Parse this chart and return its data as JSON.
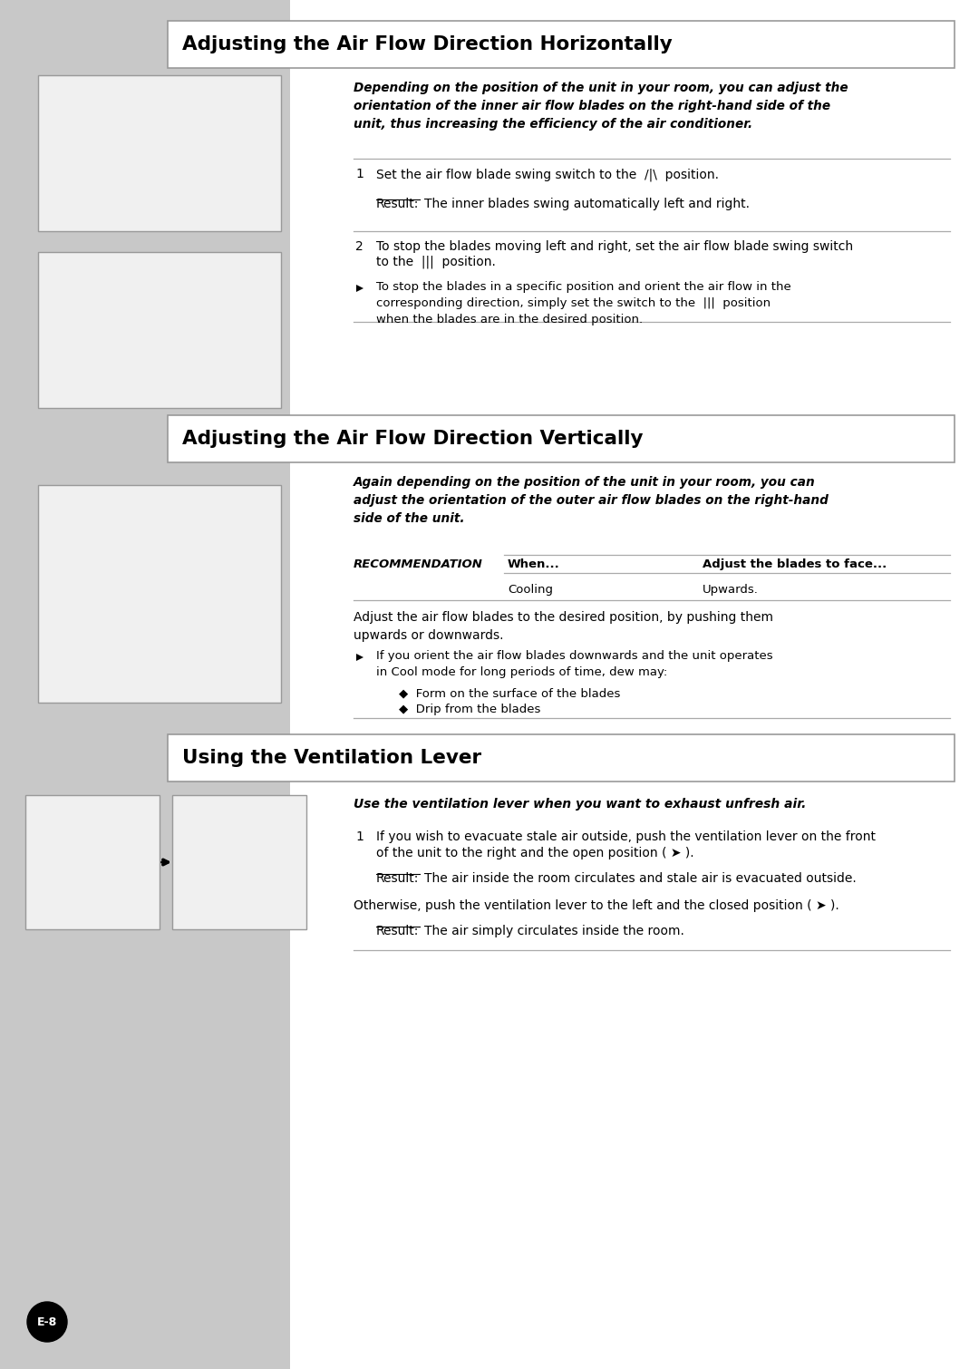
{
  "bg_color": "#c8c8c8",
  "white_bg": "#ffffff",
  "section1_title": "Adjusting the Air Flow Direction Horizontally",
  "section2_title": "Adjusting the Air Flow Direction Vertically",
  "section3_title": "Using the Ventilation Lever",
  "section1_intro": "Depending on the position of the unit in your room, you can adjust the\norientation of the inner air flow blades on the right-hand side of the\nunit, thus increasing the efficiency of the air conditioner.",
  "section1_step1": "Set the air flow blade swing switch to the  /|\\  position.",
  "section1_result1": "The inner blades swing automatically left and right.",
  "section1_step2a": "To stop the blades moving left and right, set the air flow blade swing switch",
  "section1_step2b": "to the  |||  position.",
  "section1_arrow": "To stop the blades in a specific position and orient the air flow in the\ncorresponding direction, simply set the switch to the  |||  position\nwhen the blades are in the desired position.",
  "section2_intro": "Again depending on the position of the unit in your room, you can\nadjust the orientation of the outer air flow blades on the right-hand\nside of the unit.",
  "section2_rec": "RECOMMENDATION",
  "section2_when": "When...",
  "section2_adjust_col": "Adjust the blades to face...",
  "section2_cooling": "Cooling",
  "section2_upwards": "Upwards.",
  "section2_adjust": "Adjust the air flow blades to the desired position, by pushing them\nupwards or downwards.",
  "section2_arrow": "If you orient the air flow blades downwards and the unit operates\nin Cool mode for long periods of time, dew may:",
  "section2_bullet1": "◆  Form on the surface of the blades",
  "section2_bullet2": "◆  Drip from the blades",
  "section3_intro": "Use the ventilation lever when you want to exhaust unfresh air.",
  "section3_step1a": "If you wish to evacuate stale air outside, push the ventilation lever on the front",
  "section3_step1b": "of the unit to the right and the open position ( ➤ ).",
  "section3_result1": "The air inside the room circulates and stale air is evacuated outside.",
  "section3_otherwise": "Otherwise, push the ventilation lever to the left and the closed position ( ➤ ).",
  "section3_result2": "The air simply circulates inside the room.",
  "page_label": "E-8",
  "rule_color": "#aaaaaa",
  "border_color": "#999999"
}
